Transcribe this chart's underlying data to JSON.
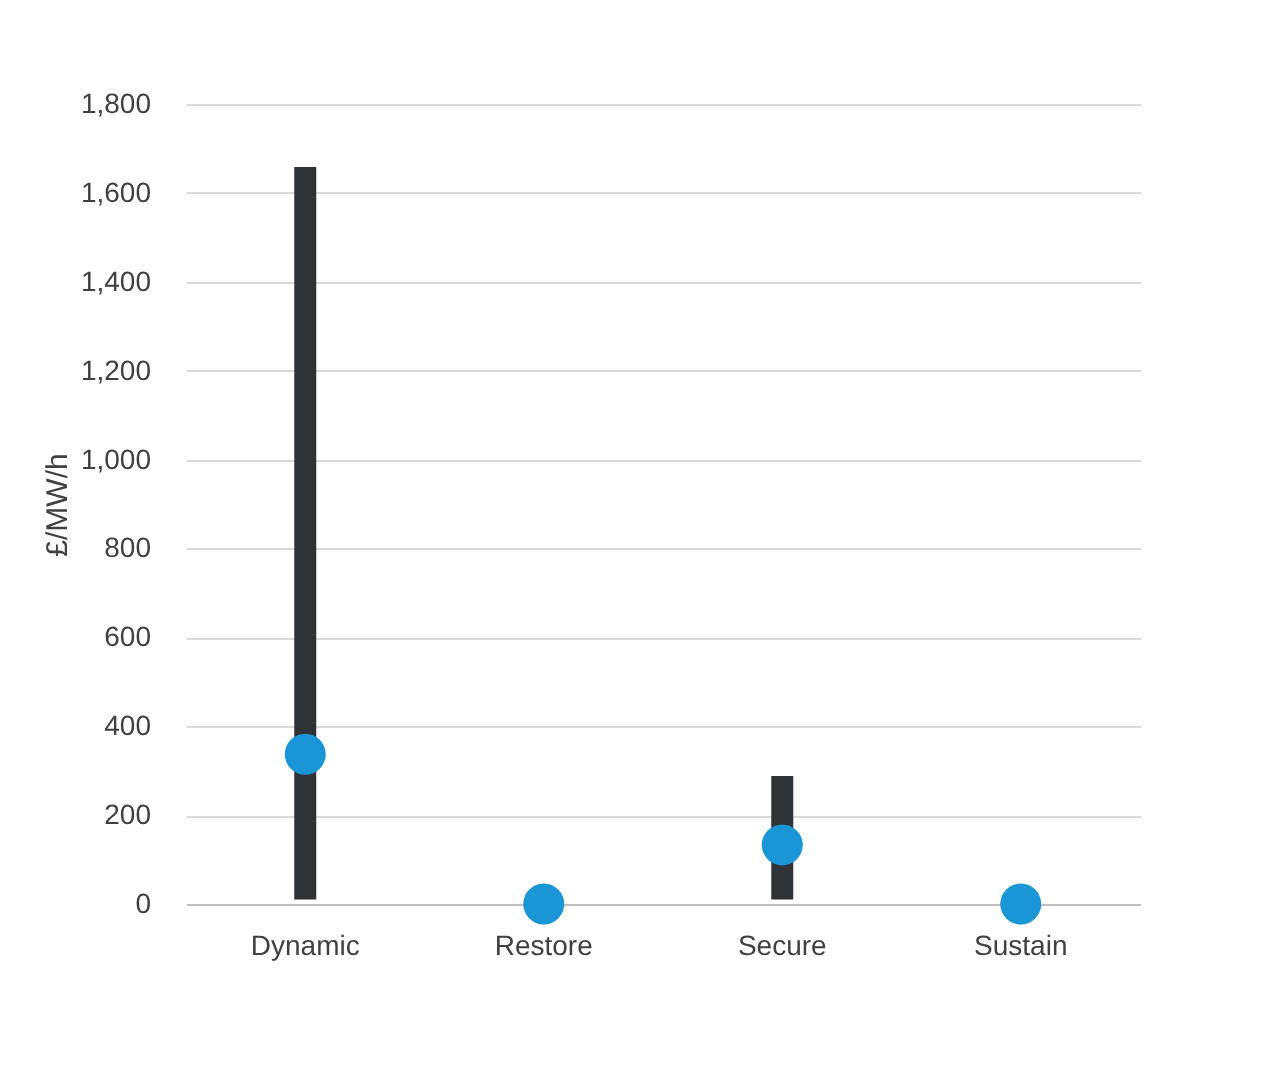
{
  "chart_data": {
    "type": "bar",
    "ylabel": "£/MW/h",
    "categories": [
      "Dynamic",
      "Restore",
      "Secure",
      "Sustain"
    ],
    "series": [
      {
        "color": "#303336",
        "base": [
          10,
          null,
          10,
          null
        ],
        "values": [
          1648,
          null,
          278,
          null
        ]
      },
      {
        "type": "scatter",
        "color": "#1a95d6",
        "x": [
          "Dynamic",
          "Restore",
          "Secure",
          "Sustain"
        ],
        "values": [
          337,
          0,
          133,
          0
        ]
      }
    ],
    "ylim": [
      0,
      1800
    ],
    "yticks": [
      0,
      200,
      400,
      600,
      800,
      {
        "value": 1000,
        "label": "1,000"
      },
      {
        "value": 1200,
        "label": "1,200"
      },
      {
        "value": 1400,
        "label": "1,400"
      },
      {
        "value": 1600,
        "label": "1,600"
      },
      {
        "value": 1800,
        "label": "1,800"
      }
    ],
    "grid": "y"
  }
}
